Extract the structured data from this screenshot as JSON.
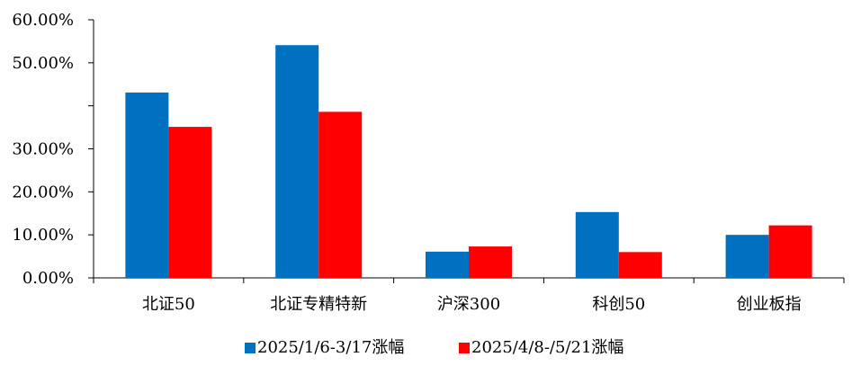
{
  "chart_data": {
    "type": "bar",
    "title": "",
    "xlabel": "",
    "ylabel": "",
    "ylim": [
      0,
      60
    ],
    "y_ticks": [
      {
        "value": 0,
        "label": "0.00%"
      },
      {
        "value": 10,
        "label": "10.00%"
      },
      {
        "value": 20,
        "label": "20.00%"
      },
      {
        "value": 30,
        "label": "30.00%"
      },
      {
        "value": 50,
        "label": "50.00%"
      },
      {
        "value": 60,
        "label": "60.00%"
      }
    ],
    "y_tick_marks": [
      0,
      10,
      20,
      30,
      40,
      50,
      60
    ],
    "categories": [
      "北证50",
      "北证专精特新",
      "沪深300",
      "科创50",
      "创业板指"
    ],
    "series": [
      {
        "name": "2025/1/6-3/17涨幅",
        "color": "#0070C0",
        "values": [
          43.1,
          54.1,
          6.1,
          15.3,
          10.0
        ]
      },
      {
        "name": "2025/4/8-/5/21涨幅",
        "color": "#FF0000",
        "values": [
          35.1,
          38.6,
          7.3,
          6.0,
          12.2
        ]
      }
    ],
    "grid": false,
    "legend_position": "bottom"
  }
}
